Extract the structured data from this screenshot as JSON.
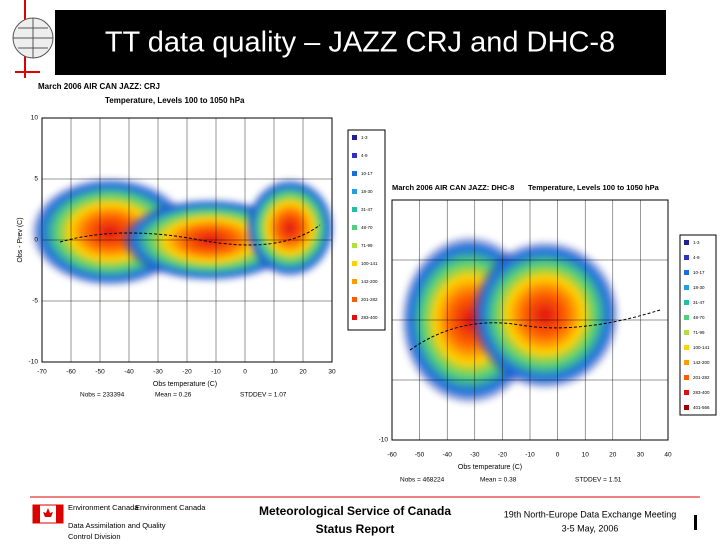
{
  "header": {
    "title": "TT data quality – JAZZ CRJ and DHC-8"
  },
  "plots": [
    {
      "title": "March 2006  AIR CAN JAZZ: CRJ",
      "subtitle": "Temperature, Levels 100 to 1050 hPa",
      "ylabel": "Obs - Prev (C)",
      "xlabel": "Obs temperature (C)",
      "yticks": [
        "10",
        "5",
        "0",
        "-5",
        "-10"
      ],
      "xticks": [
        "-70",
        "-60",
        "-50",
        "-40",
        "-30",
        "-20",
        "-10",
        "0",
        "10",
        "20",
        "30"
      ],
      "stats": [
        "Nobs = 233394",
        "Mean = 0.26",
        "STDDEV = 1.07"
      ],
      "legend": [
        "1-3",
        "4-9",
        "10-17",
        "18-30",
        "31-47",
        "48-70",
        "71-99",
        "100-141",
        "142-200",
        "201-282",
        "283-400"
      ]
    },
    {
      "title": "March 2006  AIR CAN JAZZ: DHC-8",
      "subtitle": "Temperature, Levels 100 to 1050 hPa",
      "xlabel": "Obs temperature (C)",
      "yticks": [
        "-10"
      ],
      "xticks": [
        "-60",
        "-50",
        "-40",
        "-30",
        "-20",
        "-10",
        "0",
        "10",
        "20",
        "30",
        "40"
      ],
      "stats": [
        "Nobs = 468224",
        "Mean = 0.38",
        "STDDEV = 1.51"
      ],
      "legend": [
        "1-3",
        "4-9",
        "10-17",
        "18-30",
        "31-47",
        "48-70",
        "71-99",
        "100-141",
        "142-200",
        "201-282",
        "283-400",
        "401-566"
      ]
    }
  ],
  "footer": {
    "org1": "Environment Canada",
    "org2": "Environment Canada",
    "division": [
      "Data Assimilation and Quality",
      "Control Division"
    ],
    "center": [
      "Meteorological Service of Canada",
      "Status Report"
    ],
    "right": [
      "19th North-Europe Data Exchange Meeting",
      "3-5 May, 2006"
    ]
  }
}
